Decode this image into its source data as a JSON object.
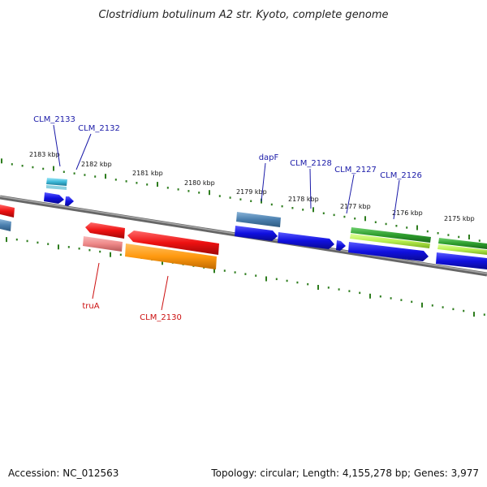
{
  "title": "Clostridium botulinum A2 str. Kyoto, complete genome",
  "footer": {
    "accession": "Accession: NC_012563",
    "summary": "Topology: circular; Length: 4,155,278 bp; Genes: 3,977"
  },
  "colors": {
    "backbone": "#888888",
    "tick": "#2e7d1e",
    "blue": "#1010e0",
    "steel": "#4a7fae",
    "cyan": "#3bb8d8",
    "red": "#ee1111",
    "pink": "#ee8888",
    "orange": "#ff9910",
    "green": "#2e9e2e",
    "lime": "#b8f050"
  },
  "ticks": [
    {
      "label": "2183 kbp"
    },
    {
      "label": "2182 kbp"
    },
    {
      "label": "2181 kbp"
    },
    {
      "label": "2180 kbp"
    },
    {
      "label": "2179 kbp"
    },
    {
      "label": "2178 kbp"
    },
    {
      "label": "2177 kbp"
    },
    {
      "label": "2176 kbp"
    },
    {
      "label": "2175 kbp"
    }
  ],
  "labels_top": [
    {
      "text": "CLM_2133"
    },
    {
      "text": "CLM_2132"
    },
    {
      "text": "dapF"
    },
    {
      "text": "CLM_2128"
    },
    {
      "text": "CLM_2127"
    },
    {
      "text": "CLM_2126"
    }
  ],
  "labels_bottom": [
    {
      "text": "truA"
    },
    {
      "text": "CLM_2130"
    }
  ]
}
